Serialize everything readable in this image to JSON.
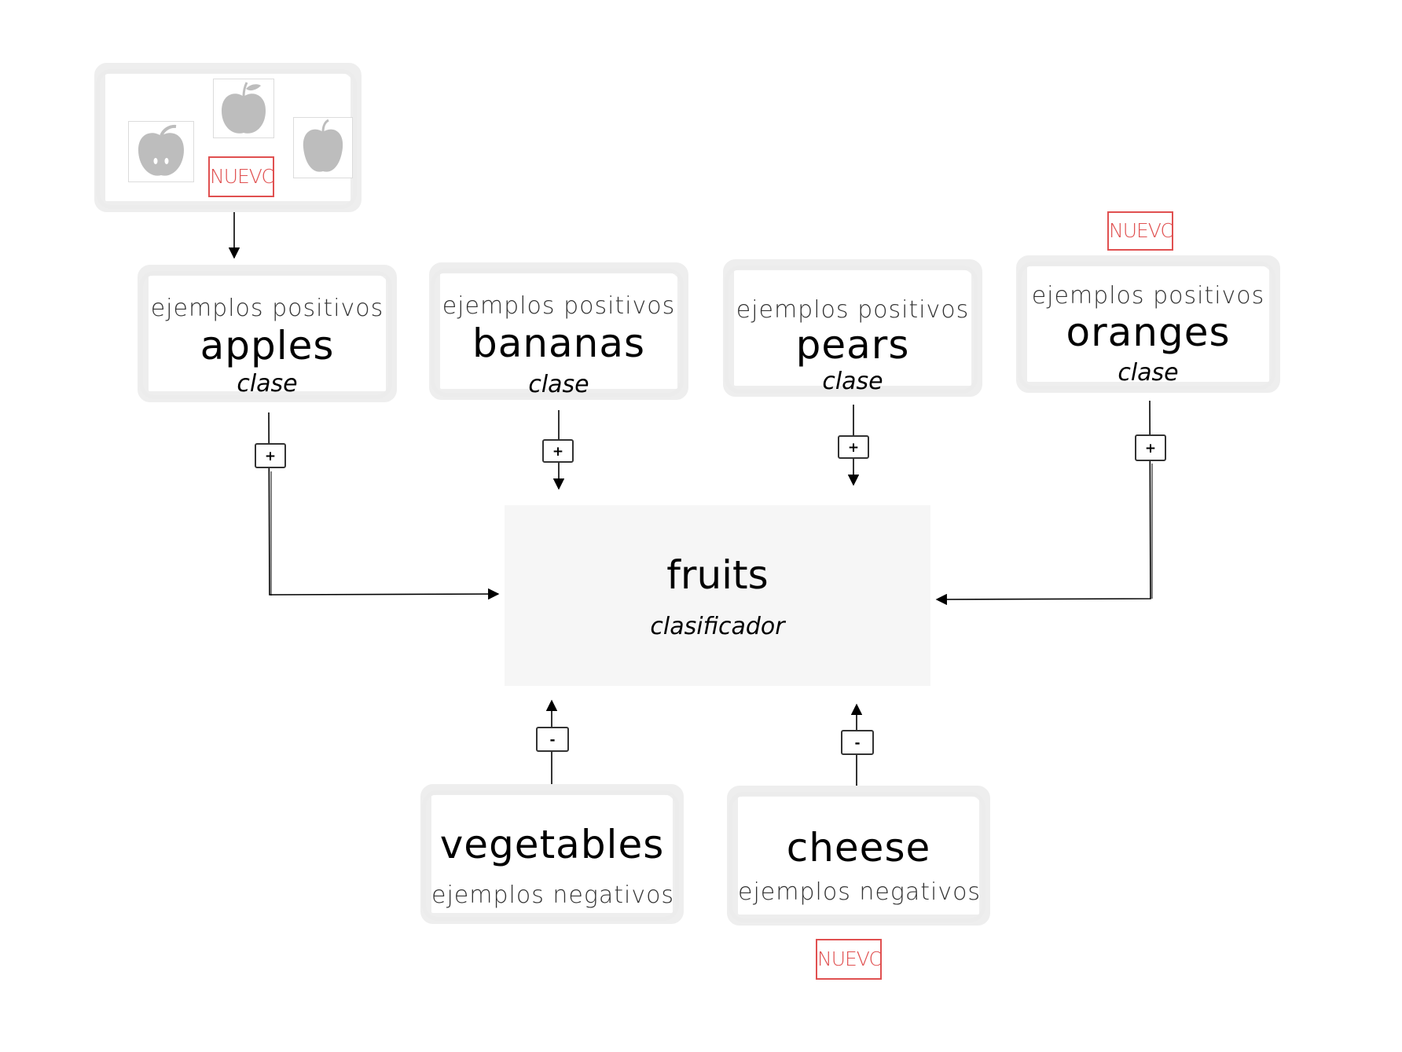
{
  "nuevo_label": "NUEVO",
  "classifier": {
    "title": "fruits",
    "type": "clasificador"
  },
  "positive_classes": [
    {
      "title": "apples",
      "subtitle": "ejemplos positivos",
      "type": "clase",
      "sign": "+"
    },
    {
      "title": "bananas",
      "subtitle": "ejemplos positivos",
      "type": "clase",
      "sign": "+"
    },
    {
      "title": "pears",
      "subtitle": "ejemplos positivos",
      "type": "clase",
      "sign": "+"
    },
    {
      "title": "oranges",
      "subtitle": "ejemplos positivos",
      "type": "clase",
      "sign": "+"
    }
  ],
  "negative_classes": [
    {
      "title": "vegetables",
      "subtitle": "ejemplos negativos",
      "sign": "-"
    },
    {
      "title": "cheese",
      "subtitle": "ejemplos negativos",
      "sign": "-"
    }
  ],
  "apple_images": [
    {
      "icon": "apple-cut-icon"
    },
    {
      "icon": "apple-icon"
    },
    {
      "icon": "apple-bell-icon"
    }
  ],
  "colors": {
    "nuevo": "#e05050",
    "apple": "#bdbdbd",
    "classifier_bg": "#f6f6f6",
    "sketch": "#eeeeee"
  }
}
